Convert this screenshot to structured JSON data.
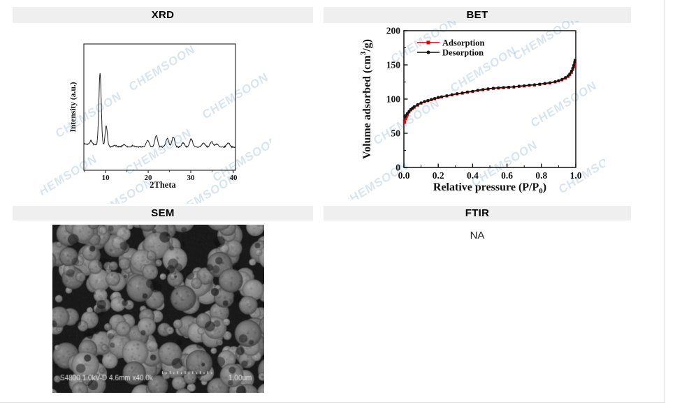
{
  "panels": {
    "xrd": {
      "title": "XRD"
    },
    "bet": {
      "title": "BET"
    },
    "sem": {
      "title": "SEM"
    },
    "ftir": {
      "title": "FTIR",
      "content": "NA"
    }
  },
  "watermark": {
    "text": "CHEMSOON",
    "color": "rgba(125,168,205,0.30)"
  },
  "sem_image": {
    "info_label": "S4800 1.0kV-D 4.6mm x40.0k",
    "scale_label": "1.00um"
  },
  "chart_data": [
    {
      "id": "xrd",
      "type": "line",
      "title": "",
      "xlabel": "2Theta",
      "ylabel": "Intensity (a.u.)",
      "xlim": [
        4.9,
        40.5
      ],
      "xticks": [
        "10",
        "20",
        "30",
        "40"
      ],
      "xticks_minor": [
        5,
        15,
        25,
        35
      ],
      "yticks": [],
      "grid": false,
      "line_color": "#222222",
      "frame_color": "#333333",
      "baseline_intensity": {
        "left": 21.0,
        "mid": 18.6
      },
      "noise_amplitude": 0.9,
      "peaks": [
        {
          "two_theta": 6.6,
          "height": 3.0,
          "width": 0.3
        },
        {
          "two_theta": 8.7,
          "height": 57.0,
          "width": 0.28
        },
        {
          "two_theta": 10.15,
          "height": 16.0,
          "width": 0.26
        },
        {
          "two_theta": 12.2,
          "height": 1.2,
          "width": 0.3
        },
        {
          "two_theta": 14.3,
          "height": 1.6,
          "width": 0.35
        },
        {
          "two_theta": 16.4,
          "height": 1.0,
          "width": 0.3
        },
        {
          "two_theta": 19.9,
          "height": 5.0,
          "width": 0.35
        },
        {
          "two_theta": 21.9,
          "height": 9.0,
          "width": 0.32
        },
        {
          "two_theta": 24.5,
          "height": 6.5,
          "width": 0.35
        },
        {
          "two_theta": 25.9,
          "height": 8.0,
          "width": 0.33
        },
        {
          "two_theta": 28.2,
          "height": 3.5,
          "width": 0.35
        },
        {
          "two_theta": 30.1,
          "height": 6.5,
          "width": 0.35
        },
        {
          "two_theta": 33.0,
          "height": 3.2,
          "width": 0.4
        },
        {
          "two_theta": 34.9,
          "height": 4.5,
          "width": 0.35
        },
        {
          "two_theta": 36.1,
          "height": 2.6,
          "width": 0.35
        },
        {
          "two_theta": 38.8,
          "height": 3.4,
          "width": 0.4
        }
      ]
    },
    {
      "id": "bet",
      "type": "line",
      "title": "",
      "xlabel_parts": {
        "pre": "Relative pressure  (P/P",
        "sub": "0",
        "post": ")"
      },
      "ylabel_parts": {
        "pre": "Volume adsorbed (cm",
        "sup": "3",
        "post": "/g)"
      },
      "xlim": [
        0,
        1
      ],
      "ylim": [
        0,
        200
      ],
      "xticks": [
        "0.0",
        "0.2",
        "0.4",
        "0.6",
        "0.8",
        "1.0"
      ],
      "yticks": [
        "0",
        "50",
        "100",
        "150",
        "200"
      ],
      "grid": false,
      "legend_position": "top-left",
      "frame_color": "#111111",
      "series": [
        {
          "name": "Adsorption",
          "color": "#e60000",
          "marker": "square",
          "points": [
            [
              0.005,
              66
            ],
            [
              0.01,
              71
            ],
            [
              0.015,
              74
            ],
            [
              0.02,
              77
            ],
            [
              0.03,
              81
            ],
            [
              0.04,
              84
            ],
            [
              0.05,
              86
            ],
            [
              0.06,
              88
            ],
            [
              0.08,
              91
            ],
            [
              0.1,
              94
            ],
            [
              0.12,
              96
            ],
            [
              0.14,
              97.5
            ],
            [
              0.16,
              99
            ],
            [
              0.18,
              100.5
            ],
            [
              0.2,
              102
            ],
            [
              0.22,
              103
            ],
            [
              0.25,
              104.5
            ],
            [
              0.28,
              106
            ],
            [
              0.31,
              107.5
            ],
            [
              0.34,
              108.5
            ],
            [
              0.37,
              110
            ],
            [
              0.4,
              111
            ],
            [
              0.43,
              112.5
            ],
            [
              0.46,
              113.5
            ],
            [
              0.49,
              114.5
            ],
            [
              0.52,
              115.5
            ],
            [
              0.55,
              116
            ],
            [
              0.58,
              116.5
            ],
            [
              0.61,
              117
            ],
            [
              0.64,
              117.5
            ],
            [
              0.67,
              118.5
            ],
            [
              0.7,
              119
            ],
            [
              0.73,
              120
            ],
            [
              0.76,
              120.5
            ],
            [
              0.79,
              121.5
            ],
            [
              0.82,
              122.5
            ],
            [
              0.85,
              123.5
            ],
            [
              0.88,
              125
            ],
            [
              0.9,
              126.5
            ],
            [
              0.92,
              128
            ],
            [
              0.94,
              130.5
            ],
            [
              0.955,
              133
            ],
            [
              0.965,
              135.5
            ],
            [
              0.975,
              139
            ],
            [
              0.982,
              143
            ],
            [
              0.988,
              147
            ],
            [
              0.993,
              151
            ],
            [
              0.996,
              153
            ]
          ]
        },
        {
          "name": "Desorption",
          "color": "#141414",
          "marker": "circle",
          "points": [
            [
              0.005,
              74
            ],
            [
              0.01,
              76
            ],
            [
              0.02,
              79
            ],
            [
              0.03,
              82
            ],
            [
              0.04,
              85
            ],
            [
              0.05,
              87
            ],
            [
              0.06,
              89
            ],
            [
              0.08,
              92
            ],
            [
              0.1,
              94.5
            ],
            [
              0.12,
              96.5
            ],
            [
              0.14,
              98
            ],
            [
              0.16,
              99.5
            ],
            [
              0.18,
              101
            ],
            [
              0.2,
              102.5
            ],
            [
              0.22,
              103.5
            ],
            [
              0.25,
              105
            ],
            [
              0.28,
              106.5
            ],
            [
              0.31,
              108
            ],
            [
              0.34,
              109
            ],
            [
              0.37,
              110.5
            ],
            [
              0.4,
              111.5
            ],
            [
              0.43,
              113
            ],
            [
              0.46,
              114
            ],
            [
              0.49,
              115
            ],
            [
              0.52,
              116
            ],
            [
              0.55,
              116.5
            ],
            [
              0.58,
              117
            ],
            [
              0.61,
              117.5
            ],
            [
              0.64,
              118
            ],
            [
              0.67,
              119
            ],
            [
              0.7,
              119.5
            ],
            [
              0.73,
              120.5
            ],
            [
              0.76,
              121
            ],
            [
              0.79,
              122
            ],
            [
              0.82,
              123
            ],
            [
              0.85,
              124
            ],
            [
              0.88,
              125.5
            ],
            [
              0.9,
              127
            ],
            [
              0.92,
              129
            ],
            [
              0.94,
              131.5
            ],
            [
              0.955,
              134
            ],
            [
              0.965,
              137
            ],
            [
              0.975,
              141
            ],
            [
              0.982,
              145
            ],
            [
              0.988,
              149.5
            ],
            [
              0.993,
              154
            ],
            [
              0.996,
              157
            ]
          ]
        }
      ]
    }
  ]
}
